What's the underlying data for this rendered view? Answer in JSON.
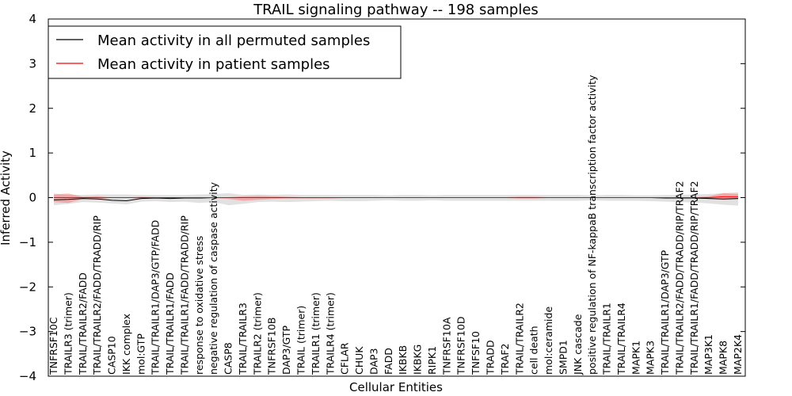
{
  "chart_data": {
    "type": "line",
    "title": "TRAIL signaling pathway -- 198 samples",
    "xlabel": "Cellular Entities",
    "ylabel": "Inferred Activity",
    "ylim": [
      -4,
      4
    ],
    "yticks": [
      -4,
      -3,
      -2,
      -1,
      0,
      1,
      2,
      3,
      4
    ],
    "ytick_labels": [
      "−4",
      "−3",
      "−2",
      "−1",
      "0",
      "1",
      "2",
      "3",
      "4"
    ],
    "grid": false,
    "legend_position": "top-left",
    "categories": [
      "TNFRSF10C",
      "TRAILR3 (trimer)",
      "TRAIL/TRAILR2/FADD",
      "TRAIL/TRAILR2/FADD/TRADD/RIP",
      "CASP10",
      "IKK complex",
      "mol:GTP",
      "TRAIL/TRAILR1/DAP3/GTP/FADD",
      "TRAIL/TRAILR1/FADD",
      "TRAIL/TRAILR1/FADD/TRADD/RIP",
      "response to oxidative stress",
      "negative regulation of caspase activity",
      "CASP8",
      "TRAIL/TRAILR3",
      "TRAILR2 (trimer)",
      "TNFRSF10B",
      "DAP3/GTP",
      "TRAIL (trimer)",
      "TRAILR1 (trimer)",
      "TRAILR4 (trimer)",
      "CFLAR",
      "CHUK",
      "DAP3",
      "FADD",
      "IKBKB",
      "IKBKG",
      "RIPK1",
      "TNFRSF10A",
      "TNFRSF10D",
      "TNFSF10",
      "TRADD",
      "TRAF2",
      "TRAIL/TRAILR2",
      "cell death",
      "mol:ceramide",
      "SMPD1",
      "JNK cascade",
      "positive regulation of NF-kappaB transcription factor activity",
      "TRAIL/TRAILR1",
      "TRAIL/TRAILR4",
      "MAPK1",
      "MAPK3",
      "TRAIL/TRAILR1/DAP3/GTP",
      "TRAIL/TRAILR2/FADD/TRADD/RIP/TRAF2",
      "TRAIL/TRAILR1/FADD/TRADD/RIP/TRAF2",
      "MAP3K1",
      "MAPK8",
      "MAP2K4"
    ],
    "series": [
      {
        "name": "Mean activity in all permuted samples",
        "color": "#000000",
        "values": [
          -0.05,
          -0.04,
          -0.02,
          -0.03,
          -0.06,
          -0.07,
          -0.02,
          -0.01,
          -0.02,
          -0.01,
          -0.01,
          0.0,
          0.0,
          0.0,
          0.0,
          0.0,
          0.0,
          0.0,
          0.0,
          0.0,
          0.0,
          0.0,
          0.0,
          0.0,
          0.0,
          0.0,
          0.0,
          0.0,
          0.0,
          0.0,
          0.0,
          0.0,
          0.0,
          0.0,
          0.0,
          0.0,
          0.0,
          0.0,
          0.0,
          0.0,
          0.0,
          0.0,
          -0.01,
          -0.01,
          -0.01,
          -0.02,
          -0.03,
          -0.02
        ],
        "band_upper": [
          0.09,
          0.06,
          0.06,
          0.07,
          0.07,
          0.07,
          0.06,
          0.06,
          0.06,
          0.06,
          0.07,
          0.08,
          0.1,
          0.06,
          0.07,
          0.06,
          0.07,
          0.06,
          0.06,
          0.06,
          0.06,
          0.06,
          0.06,
          0.05,
          0.06,
          0.06,
          0.05,
          0.06,
          0.06,
          0.06,
          0.06,
          0.06,
          0.06,
          0.06,
          0.06,
          0.06,
          0.06,
          0.05,
          0.06,
          0.06,
          0.05,
          0.05,
          0.06,
          0.06,
          0.07,
          0.08,
          0.1,
          0.12
        ],
        "band_lower": [
          -0.17,
          -0.14,
          -0.1,
          -0.11,
          -0.13,
          -0.15,
          -0.09,
          -0.08,
          -0.1,
          -0.09,
          -0.12,
          -0.1,
          -0.17,
          -0.14,
          -0.1,
          -0.09,
          -0.1,
          -0.09,
          -0.08,
          -0.07,
          -0.08,
          -0.08,
          -0.07,
          -0.06,
          -0.07,
          -0.07,
          -0.06,
          -0.07,
          -0.07,
          -0.07,
          -0.07,
          -0.07,
          -0.07,
          -0.07,
          -0.07,
          -0.07,
          -0.07,
          -0.06,
          -0.07,
          -0.07,
          -0.07,
          -0.08,
          -0.09,
          -0.1,
          -0.11,
          -0.13,
          -0.16,
          -0.18
        ]
      },
      {
        "name": "Mean activity in patient samples",
        "color": "#ff0000",
        "values": [
          0.0,
          0.0,
          0.0,
          0.0,
          0.0,
          0.0,
          0.0,
          0.0,
          0.0,
          0.0,
          0.0,
          0.0,
          0.0,
          0.0,
          0.0,
          0.0,
          0.0,
          0.0,
          0.0,
          0.0,
          0.0,
          0.0,
          0.0,
          0.0,
          0.0,
          0.0,
          0.0,
          0.0,
          0.0,
          0.0,
          0.0,
          0.0,
          0.0,
          0.0,
          0.0,
          0.0,
          0.0,
          0.0,
          0.0,
          0.0,
          0.0,
          0.0,
          0.0,
          0.0,
          0.0,
          0.0,
          0.02,
          0.02
        ],
        "band_upper": [
          0.07,
          0.09,
          0.02,
          0.03,
          0.0,
          0.0,
          0.02,
          0.01,
          0.01,
          0.01,
          0.0,
          0.0,
          0.01,
          0.03,
          0.04,
          0.03,
          0.02,
          0.01,
          0.01,
          0.01,
          0.01,
          0.01,
          0.01,
          0.01,
          0.01,
          0.01,
          0.01,
          0.01,
          0.01,
          0.01,
          0.01,
          0.01,
          0.02,
          0.02,
          0.01,
          0.01,
          0.01,
          0.01,
          0.01,
          0.01,
          0.01,
          0.01,
          0.01,
          0.01,
          0.01,
          0.03,
          0.1,
          0.08
        ],
        "band_lower": [
          -0.1,
          -0.12,
          -0.03,
          -0.03,
          -0.01,
          -0.01,
          -0.02,
          -0.02,
          -0.02,
          -0.01,
          -0.01,
          -0.01,
          -0.03,
          -0.07,
          -0.05,
          -0.03,
          -0.02,
          -0.02,
          -0.02,
          -0.02,
          -0.01,
          -0.01,
          -0.01,
          -0.01,
          -0.01,
          -0.01,
          -0.01,
          -0.01,
          -0.01,
          -0.01,
          -0.01,
          -0.01,
          -0.02,
          -0.02,
          -0.01,
          -0.01,
          -0.01,
          -0.01,
          -0.01,
          -0.01,
          -0.01,
          -0.01,
          -0.01,
          -0.01,
          -0.02,
          -0.03,
          -0.05,
          -0.04
        ]
      }
    ]
  }
}
